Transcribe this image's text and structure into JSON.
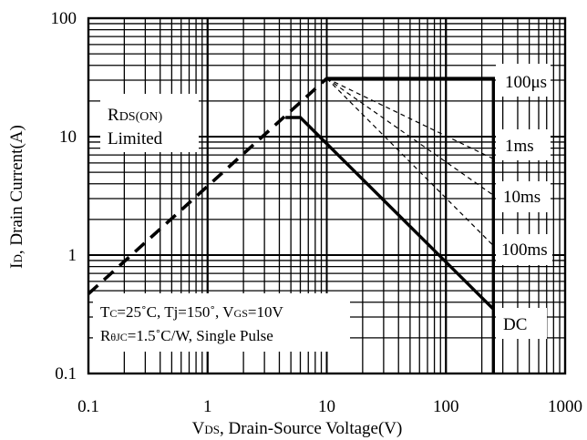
{
  "chart_data": {
    "type": "line",
    "title": "",
    "xlabel": {
      "main": "V",
      "sub": "DS",
      "rest": ", Drain-Source Voltage(V)"
    },
    "ylabel": {
      "main": "I",
      "sub": "D",
      "rest": ", Drain Current(A)"
    },
    "x_scale": "log",
    "y_scale": "log",
    "xlim": [
      0.1,
      1000
    ],
    "ylim": [
      0.1,
      100
    ],
    "x_ticks": [
      {
        "value": 0.1,
        "label": "0.1"
      },
      {
        "value": 1,
        "label": "1"
      },
      {
        "value": 10,
        "label": "10"
      },
      {
        "value": 100,
        "label": "100"
      },
      {
        "value": 1000,
        "label": "1000"
      }
    ],
    "y_ticks": [
      {
        "value": 0.1,
        "label": "0.1"
      },
      {
        "value": 1,
        "label": "1"
      },
      {
        "value": 10,
        "label": "10"
      },
      {
        "value": 100,
        "label": "100"
      }
    ],
    "grid": true,
    "series": [
      {
        "key": "rds-limit",
        "style": "thick-dashed",
        "points": [
          [
            0.1,
            0.47
          ],
          [
            10,
            31
          ]
        ]
      },
      {
        "key": "dc",
        "style": "thick-solid",
        "points": [
          [
            4.5,
            14.5
          ],
          [
            6,
            14.5
          ],
          [
            250,
            0.35
          ]
        ]
      },
      {
        "key": "pulse-100us",
        "style": "thick-solid",
        "points": [
          [
            10,
            31
          ],
          [
            250,
            31
          ],
          [
            250,
            0.1
          ]
        ]
      },
      {
        "key": "pulse-1ms",
        "style": "thin-dashed",
        "points": [
          [
            10,
            31
          ],
          [
            250,
            6.5
          ]
        ]
      },
      {
        "key": "pulse-10ms",
        "style": "thin-dashed",
        "points": [
          [
            10,
            31
          ],
          [
            250,
            3.2
          ]
        ]
      },
      {
        "key": "pulse-100ms",
        "style": "thin-dashed",
        "points": [
          [
            10,
            31
          ],
          [
            250,
            1.2
          ]
        ]
      }
    ],
    "series_labels": [
      {
        "key": "100us",
        "text": "100μs"
      },
      {
        "key": "1ms",
        "text": "1ms"
      },
      {
        "key": "10ms",
        "text": "10ms"
      },
      {
        "key": "100ms",
        "text": "100ms"
      },
      {
        "key": "dc",
        "text": "DC"
      }
    ],
    "annotations": {
      "rds_limited": {
        "r": "R",
        "sub": "DS(ON)",
        "limited": "Limited"
      },
      "conditions": {
        "tc": {
          "main": "T",
          "sub": "C",
          "rest": "=25˚C, "
        },
        "tj": "Tj=150˚, ",
        "vgs": {
          "main": "V",
          "sub": "GS",
          "rest": "=10V"
        },
        "rth": {
          "main": "R",
          "sub": "θJC",
          "rest": "=1.5˚C/W, Single Pulse"
        }
      }
    }
  }
}
